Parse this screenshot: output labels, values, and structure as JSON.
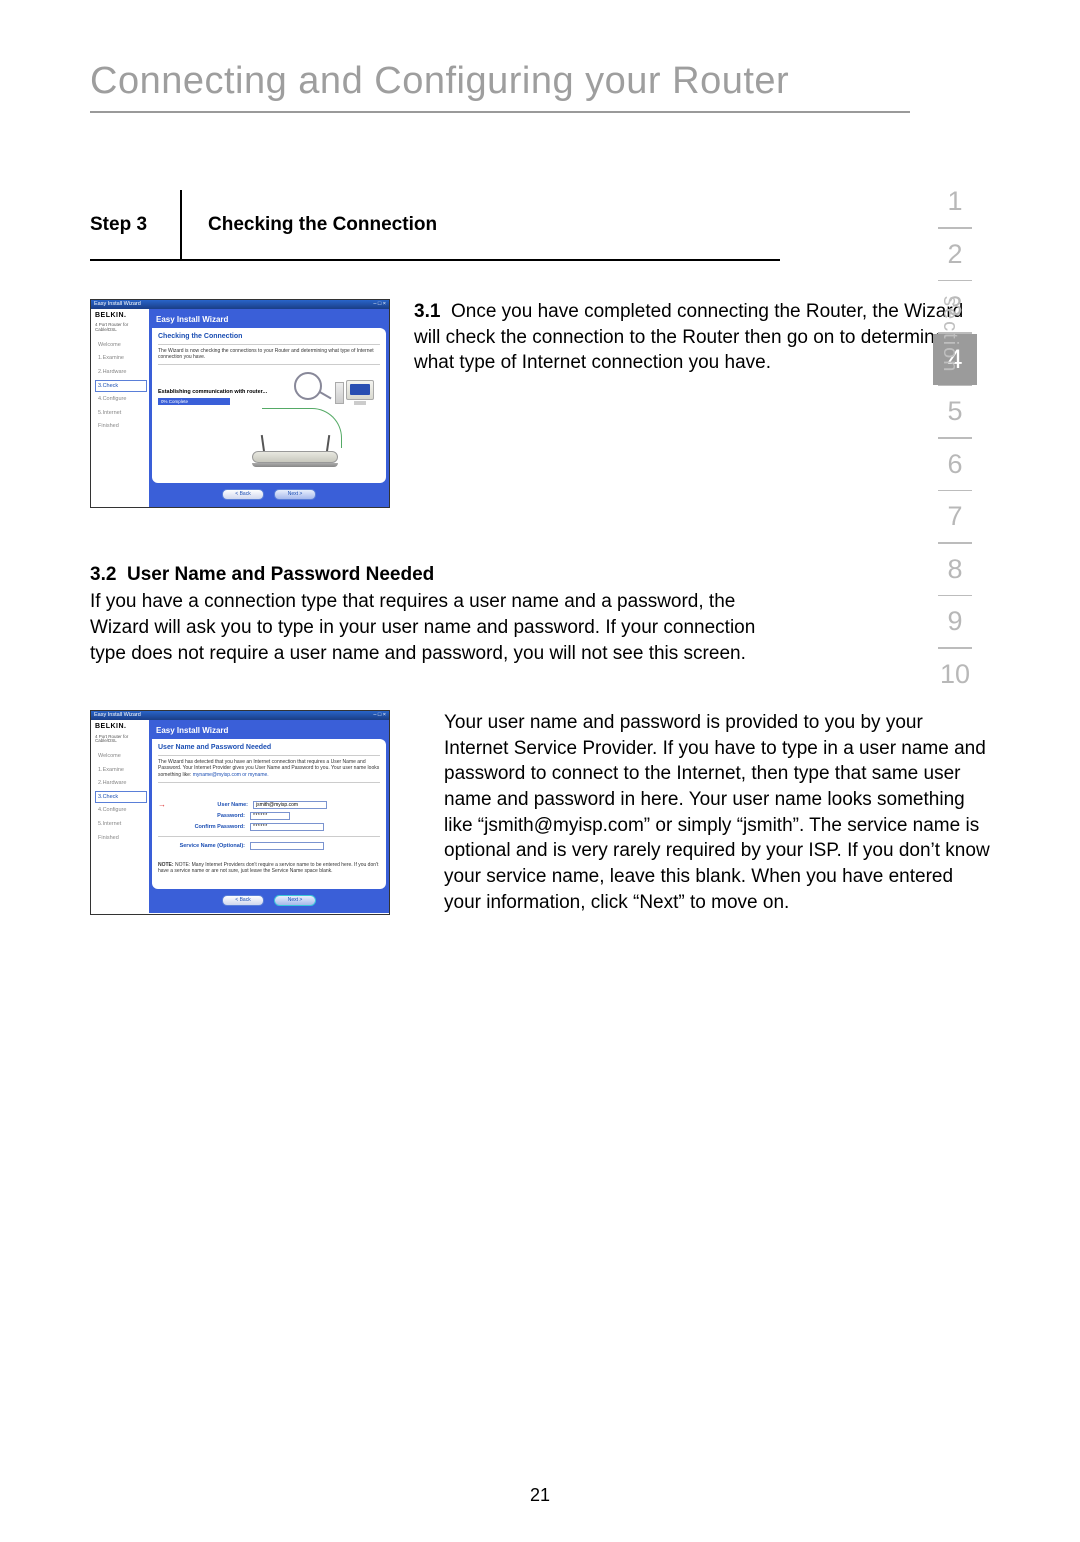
{
  "chapter_title": "Connecting and Configuring your Router",
  "step": {
    "label": "Step 3",
    "title": "Checking the Connection"
  },
  "para31_num": "3.1",
  "para31": "Once you have completed connecting the Router, the Wizard will check the connection to the Router then go on to determine what type of Internet connection you have.",
  "sub32_num": "3.2",
  "sub32_title": "User Name and Password Needed",
  "para32a": "If you have a connection type that requires a user name and a password, the Wizard will ask you to type in your user name and password. If your connection type does not require a user name and password, you will not see this screen.",
  "para32b": "Your user name and password is provided to you by your Internet Service Provider. If you have to type in a user name and password to connect to the Internet, then type that same user name and password in here. Your user name looks something like “jsmith@myisp.com” or simply “jsmith”. The service name is optional and is very rarely required by your ISP. If you don’t know your service name, leave this blank. When you have entered your information, click “Next” to move on.",
  "page_number": "21",
  "section_label": "section",
  "sections": [
    "1",
    "2",
    "3",
    "4",
    "5",
    "6",
    "7",
    "8",
    "9",
    "10"
  ],
  "active_section_index": 3,
  "screenshot_common": {
    "window_title": "Easy Install Wizard",
    "logo": "BELKIN.",
    "logo_sub": "4 Port Router\nfor Cable/DSL",
    "panel_app_title": "Easy Install Wizard",
    "steps": [
      "Welcome",
      "1.Examine",
      "2.Hardware",
      "3.Check",
      "4.Configure",
      "5.Internet",
      "Finished"
    ],
    "btn_back": "< Back",
    "btn_next": "Next >"
  },
  "shot1": {
    "panel_heading": "Checking the Connection",
    "panel_text_a": "The Wizard is now checking the connections to your Router and determining what type of Internet connection you have.",
    "progress_label": "Establishing communication with router...",
    "progress_value": "0% Complete",
    "active_step_index": 3
  },
  "shot2": {
    "panel_heading": "User Name and Password Needed",
    "panel_text_a": "The Wizard has detected that you have an Internet connection that requires a User Name and Password. Your Internet Provider gives you User Name and Password to you. Your user name looks something like:",
    "panel_text_link": "myname@myisp.com or myname.",
    "form": {
      "user_label": "User Name:",
      "user_value": "jsmith@myisp.com",
      "pass_label": "Password:",
      "pass_value": "******",
      "confirm_label": "Confirm Password:",
      "confirm_value": "******",
      "service_label": "Service Name (Optional):",
      "service_value": ""
    },
    "note": "NOTE: Many Internet Providers don't require a service name to be entered here. If you don't have a service name or are not sure, just leave the Service Name space blank.",
    "active_step_index": 3
  },
  "colors": {
    "grey_title": "#9e9e9e",
    "nav_grey": "#b8b8b8",
    "nav_active_bg": "#9b9b9b",
    "wizard_blue": "#3a5fd8",
    "link_blue": "#1b4eb3",
    "highlight_cyan": "#3ac5d8"
  }
}
